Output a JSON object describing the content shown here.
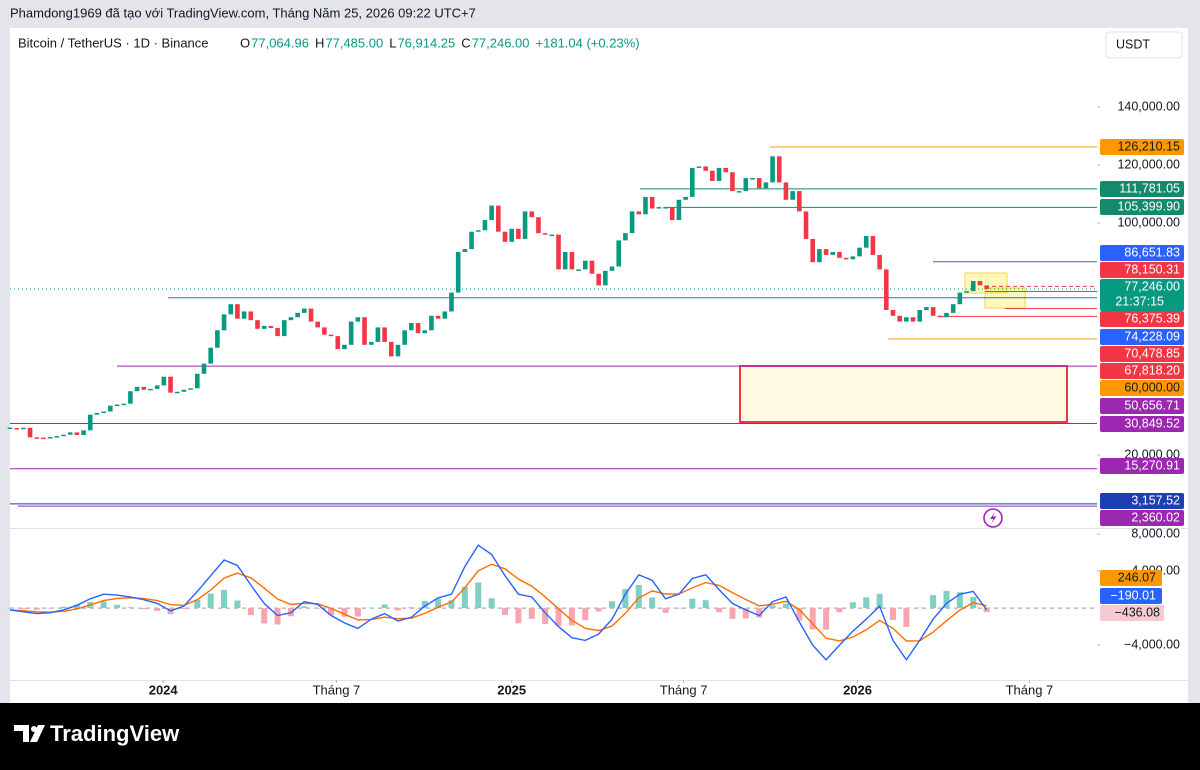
{
  "top_bar": {
    "text": "Phamdong1969 đã tạo với TradingView.com, Tháng Năm 25, 2026 09:22 UTC+7"
  },
  "header": {
    "symbol": "Bitcoin / TetherUS · 1D · Binance",
    "ohlc": [
      {
        "label": "O",
        "value": "77,064.96"
      },
      {
        "label": "H",
        "value": "77,485.00"
      },
      {
        "label": "L",
        "value": "76,914.25"
      },
      {
        "label": "C",
        "value": "77,246.00"
      }
    ],
    "change": "+181.04 (+0.23%)"
  },
  "currency": "USDT",
  "footer": {
    "logo": "TradingView"
  },
  "chart_data": [
    {
      "type": "candlestick",
      "up_color": "#089981",
      "down_color": "#f23645",
      "values": [
        29300,
        29100,
        29400,
        26100,
        26000,
        25900,
        26200,
        26500,
        27000,
        27800,
        26900,
        28500,
        33900,
        34500,
        35000,
        37000,
        37400,
        37700,
        42000,
        43500,
        42500,
        42800,
        44000,
        47000,
        41500,
        41800,
        42500,
        43000,
        48000,
        51500,
        57000,
        63000,
        68500,
        72000,
        67000,
        69500,
        66500,
        63500,
        64500,
        63800,
        61000,
        66500,
        67500,
        69000,
        70500,
        66000,
        64000,
        61500,
        61000,
        56500,
        58000,
        66000,
        67500,
        58000,
        59000,
        64000,
        59000,
        54000,
        58000,
        63000,
        65500,
        62000,
        63000,
        68000,
        67000,
        69500,
        76000,
        90000,
        91000,
        97000,
        97500,
        101000,
        106000,
        97000,
        93500,
        98000,
        94500,
        104000,
        102000,
        96500,
        96000,
        96000,
        84000,
        90000,
        84000,
        84000,
        87000,
        82500,
        78500,
        83500,
        85000,
        94000,
        96500,
        104000,
        103000,
        109000,
        105000,
        105500,
        105500,
        101000,
        108000,
        109000,
        119000,
        119500,
        118000,
        114500,
        119000,
        117500,
        111000,
        111000,
        115500,
        115500,
        112000,
        114000,
        123000,
        114000,
        108000,
        111000,
        104000,
        94500,
        86500,
        91000,
        89000,
        90000,
        88000,
        87500,
        88500,
        91500,
        95500,
        89000,
        84000,
        70000,
        68000,
        66000,
        67500,
        66000,
        70000,
        71000,
        68000,
        67500,
        69000,
        72000,
        76000,
        76500,
        80000,
        78500,
        77246
      ],
      "xlim": [
        0,
        162.5
      ],
      "xticks": [
        {
          "value": 22.9,
          "label": "2024"
        },
        {
          "value": 48.8,
          "label": "Tháng 7"
        },
        {
          "value": 75.0,
          "label": "2025"
        },
        {
          "value": 100.7,
          "label": "Tháng 7"
        },
        {
          "value": 126.7,
          "label": "2026"
        },
        {
          "value": 152.4,
          "label": "Tháng 7"
        }
      ],
      "ylim": [
        -5170,
        167240
      ],
      "yticks": [
        {
          "value": 140000,
          "label": "140,000.00"
        },
        {
          "value": 120000,
          "label": "120,000.00"
        },
        {
          "value": 100000,
          "label": "100,000.00"
        },
        {
          "value": 20000,
          "label": "20,000.00"
        }
      ],
      "levels": [
        {
          "value": 126210.15,
          "label": "126,210.15",
          "color": "#ff9800"
        },
        {
          "value": 111781.05,
          "label": "111,781.05",
          "color": "#138a6c"
        },
        {
          "value": 105399.9,
          "label": "105,399.90",
          "color": "#138a6c"
        },
        {
          "value": 86651.83,
          "label": "86,651.83",
          "color": "#2962ff"
        },
        {
          "value": 78150.31,
          "label": "78,150.31",
          "color": "#f23645"
        },
        {
          "value": 77246.0,
          "label": "77,246.00",
          "color": "#089981",
          "countdown": "21:37:15"
        },
        {
          "value": 76375.39,
          "label": "76,375.39",
          "color": "#f23645"
        },
        {
          "value": 74228.09,
          "label": "74,228.09",
          "color": "#2962ff"
        },
        {
          "value": 70478.85,
          "label": "70,478.85",
          "color": "#f23645"
        },
        {
          "value": 67818.2,
          "label": "67,818.20",
          "color": "#f23645"
        },
        {
          "value": 60000.0,
          "label": "60,000.00",
          "color": "#ff9800"
        },
        {
          "value": 50656.71,
          "label": "50,656.71",
          "color": "#9c27b0"
        },
        {
          "value": 30849.52,
          "label": "30,849.52",
          "color": "#9c27b0"
        },
        {
          "value": 15270.91,
          "label": "15,270.91",
          "color": "#9c27b0"
        },
        {
          "value": 3157.52,
          "label": "3,157.52",
          "color": "#1e3fb3"
        },
        {
          "value": 2360.02,
          "label": "2,360.02",
          "color": "#9c27b0"
        }
      ]
    },
    {
      "type": "macd",
      "x": [
        0,
        2,
        4,
        6,
        8,
        10,
        12,
        14,
        16,
        18,
        20,
        22,
        24,
        26,
        28,
        30,
        32,
        34,
        36,
        38,
        40,
        42,
        44,
        46,
        48,
        50,
        52,
        54,
        56,
        58,
        60,
        62,
        64,
        66,
        68,
        70,
        72,
        74,
        76,
        78,
        80,
        82,
        84,
        86,
        88,
        90,
        92,
        94,
        96,
        98,
        100,
        102,
        104,
        106,
        108,
        110,
        112,
        114,
        116,
        118,
        120,
        122,
        124,
        126,
        128,
        130,
        132,
        134,
        136,
        138,
        140,
        142,
        144,
        146
      ],
      "ylim": [
        -7780,
        8660
      ],
      "yticks": [
        {
          "value": 8000,
          "label": "8,000.00"
        },
        {
          "value": 4000,
          "label": "4,000.00"
        },
        {
          "value": -4000,
          "label": "−4,000.00"
        }
      ],
      "series": [
        {
          "color": "#2962ff",
          "last_label": "−190.01",
          "values": [
            -200,
            -400,
            -600,
            -500,
            -200,
            300,
            1000,
            1500,
            1400,
            1200,
            900,
            500,
            -300,
            200,
            1800,
            3500,
            5200,
            4600,
            2500,
            500,
            -800,
            -500,
            700,
            400,
            -800,
            -1600,
            -2200,
            -1200,
            -600,
            -1400,
            -1000,
            200,
            1100,
            1500,
            4500,
            6800,
            5800,
            3500,
            1500,
            1200,
            -500,
            -2000,
            -3200,
            -3500,
            -2800,
            -1200,
            1500,
            3600,
            3000,
            1000,
            1500,
            3200,
            3600,
            2000,
            500,
            -200,
            -800,
            700,
            1200,
            -1500,
            -4000,
            -5600,
            -4000,
            -2500,
            -1200,
            200,
            -3500,
            -5600,
            -3500,
            -1200,
            500,
            1500,
            1800,
            -190.01
          ]
        },
        {
          "color": "#ff6d00",
          "last_label": "246.07",
          "values": [
            -200,
            -280,
            -408,
            -445,
            -347,
            -88,
            347,
            808,
            1045,
            1107,
            1024,
            814,
            368,
            301,
            901,
            1941,
            3245,
            3787,
            3272,
            2163,
            978,
            387,
            512,
            467,
            -40,
            -664,
            -1278,
            -1247,
            -988,
            -1153,
            -1092,
            -575,
            95,
            657,
            2194,
            4036,
            4742,
            4245,
            3147,
            2368,
            1221,
            -67,
            -1320,
            -2192,
            -2435,
            -1941,
            -565,
            1101,
            1861,
            1517,
            1510,
            2186,
            2752,
            2451,
            1671,
            923,
            234,
            420,
            732,
            -161,
            -1697,
            -3258,
            -3555,
            -3133,
            -2360,
            -1336,
            -2202,
            -3561,
            -3537,
            -2602,
            -1361,
            -217,
            590,
            246.07
          ]
        }
      ],
      "histogram": {
        "up_color": "#7fcfc4",
        "down_color": "#f7a6b0",
        "last_label": "−436.08",
        "values": [
          0,
          -120,
          -192,
          -55,
          147,
          388,
          653,
          692,
          355,
          93,
          -124,
          -314,
          -668,
          -101,
          899,
          1559,
          1955,
          813,
          -772,
          -1663,
          -1778,
          -887,
          188,
          -67,
          -760,
          -936,
          -922,
          47,
          388,
          -247,
          92,
          775,
          1005,
          843,
          2306,
          2764,
          1058,
          -745,
          -1647,
          -1168,
          -1721,
          -1933,
          -1880,
          -1308,
          -365,
          741,
          2065,
          2499,
          1139,
          -517,
          -10,
          1014,
          848,
          -451,
          -1171,
          -1123,
          -1034,
          280,
          468,
          -1339,
          -2303,
          -2342,
          -445,
          633,
          1160,
          1536,
          -1298,
          -2039,
          37,
          1402,
          1861,
          1717,
          1210,
          -436.08
        ]
      }
    }
  ]
}
